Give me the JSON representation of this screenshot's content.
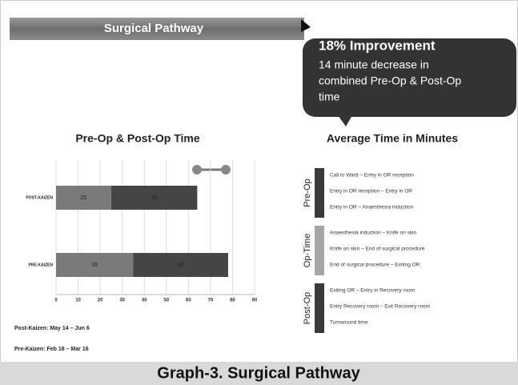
{
  "header": {
    "title": "Surgical Pathway"
  },
  "callout": {
    "title": "18% Improvement",
    "text": [
      "14 minute decrease in",
      "combined Pre-Op & Post-Op",
      "time"
    ]
  },
  "chart_data": {
    "type": "stacked_barh",
    "title": "Pre-Op & Post-Op Time",
    "categories": [
      "POST-KAIZEN",
      "PRE-KAIZEN"
    ],
    "series": [
      {
        "color": "#7a7a7a",
        "values": [
          25,
          35
        ]
      },
      {
        "color": "#454545",
        "values": [
          39,
          43
        ]
      }
    ],
    "xlim": [
      0,
      90
    ],
    "xticks": [
      0,
      10,
      20,
      30,
      40,
      50,
      60,
      70,
      80,
      90
    ],
    "grid": true
  },
  "legend_panel": {
    "title": "Average Time in Minutes",
    "groups": [
      {
        "label": "Pre-Op",
        "color": "#3a3a3a",
        "items": [
          "Call to Ward – Entry in OR reception",
          "Entry in OR reception – Entry in OR",
          "Entry in OR – Anaesthesia induction"
        ]
      },
      {
        "label": "Op-Time",
        "color": "#a6a6a6",
        "items": [
          "Anaesthesia induction – Knife on skin",
          "Knife on skin – End of surgical procedure",
          "End of surgical procedure – Exiting OR"
        ]
      },
      {
        "label": "Post-Op",
        "color": "#3a3a3a",
        "items": [
          "Exiting OR – Entry in Recovery room",
          "Entry Recovery room – Exit Recovery room",
          "Turnaround time"
        ]
      }
    ]
  },
  "footnotes": [
    "Post-Kaizen: May 14 – Jun 6",
    "Pre-Kaizen: Feb 18 – Mar 16"
  ],
  "caption": "Graph-3. Surgical Pathway"
}
